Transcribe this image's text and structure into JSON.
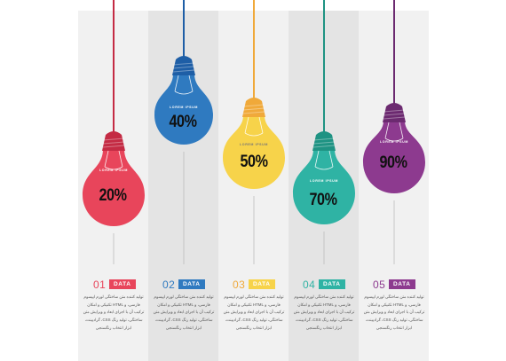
{
  "items": [
    {
      "num": "01",
      "tag": "DATA",
      "pct": "20%",
      "lorem": "LOREM IPSUM",
      "color": "#e8455b",
      "cap": "#c42b44",
      "desc": "تولید کننده متن ساختگی لورم ایپسوم فارسی، و HTML تکنیکی و امکان ترکیب آن با اجرای ابعاد و ویرایش متن ساختگی، تولید رنگ CSS، گرادیینت، ابزار انتخاب رنگسنجی"
    },
    {
      "num": "02",
      "tag": "DATA",
      "pct": "40%",
      "lorem": "LOREM IPSUM",
      "color": "#2f7ac0",
      "cap": "#1e5ea6",
      "desc": "تولید کننده متن ساختگی لورم ایپسوم فارسی، و HTML تکنیکی و امکان ترکیب آن با اجرای ابعاد و ویرایش متن ساختگی، تولید رنگ CSS، گرادیینت، ابزار انتخاب رنگسنجی"
    },
    {
      "num": "03",
      "tag": "DATA",
      "pct": "50%",
      "lorem": "LOREM IPSUM",
      "color": "#f7d34a",
      "cap": "#f0a93a",
      "desc": "تولید کننده متن ساختگی لورم ایپسوم فارسی، و HTML تکنیکی و امکان ترکیب آن با اجرای ابعاد و ویرایش متن ساختگی، تولید رنگ CSS، گرادیینت، ابزار انتخاب رنگسنجی"
    },
    {
      "num": "04",
      "tag": "DATA",
      "pct": "70%",
      "lorem": "LOREM IPSUM",
      "color": "#2fb3a4",
      "cap": "#1f9383",
      "desc": "تولید کننده متن ساختگی لورم ایپسوم فارسی، و HTML تکنیکی و امکان ترکیب آن با اجرای ابعاد و ویرایش متن ساختگی، تولید رنگ CSS، گرادیینت، ابزار انتخاب رنگسنجی"
    },
    {
      "num": "05",
      "tag": "DATA",
      "pct": "90%",
      "lorem": "LOREM IPSUM",
      "color": "#8d3a8f",
      "cap": "#6c2a70",
      "desc": "تولید کننده متن ساختگی لورم ایپسوم فارسی، و HTML تکنیکی و امکان ترکیب آن با اجرای ابعاد و ویرایش متن ساختگی، تولید رنگ CSS، گرادیینت، ابزار انتخاب رنگسنجی"
    }
  ]
}
